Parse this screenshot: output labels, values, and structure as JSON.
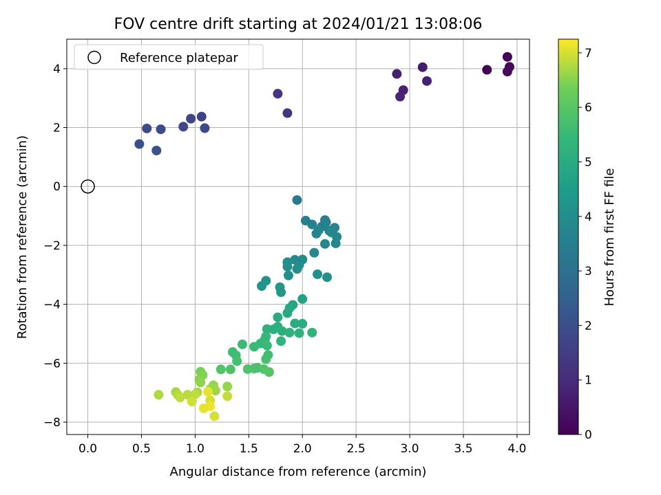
{
  "chart_data": {
    "type": "scatter",
    "title": "FOV centre drift starting at 2024/01/21 13:08:06",
    "xlabel": "Angular distance from reference (arcmin)",
    "ylabel": "Rotation from reference (arcmin)",
    "xlim": [
      -0.196,
      4.116
    ],
    "ylim": [
      -8.42,
      5.0
    ],
    "xticks": [
      "0.0",
      "0.5",
      "1.0",
      "1.5",
      "2.0",
      "2.5",
      "3.0",
      "3.5",
      "4.0"
    ],
    "xtick_values": [
      0,
      0.5,
      1.0,
      1.5,
      2.0,
      2.5,
      3.0,
      3.5,
      4.0
    ],
    "yticks": [
      "4",
      "2",
      "0",
      "−2",
      "−4",
      "−6",
      "−8"
    ],
    "ytick_values": [
      4,
      2,
      0,
      -2,
      -4,
      -6,
      -8
    ],
    "grid": true,
    "legend": {
      "position": "top-left",
      "entries": [
        "Reference platepar"
      ]
    },
    "reference_point": {
      "x": 0,
      "y": 0
    },
    "colorbar": {
      "label": "Hours from first FF file",
      "colormap": "viridis",
      "range": [
        0,
        7.25
      ],
      "ticks": [
        "0",
        "1",
        "2",
        "3",
        "4",
        "5",
        "6",
        "7"
      ],
      "tick_values": [
        0,
        1,
        2,
        3,
        4,
        5,
        6,
        7
      ]
    },
    "points": [
      {
        "x": 3.72,
        "y": 3.96,
        "c": 0.05
      },
      {
        "x": 3.91,
        "y": 4.4,
        "c": 0.1
      },
      {
        "x": 3.93,
        "y": 4.06,
        "c": 0.15
      },
      {
        "x": 3.91,
        "y": 3.9,
        "c": 0.2
      },
      {
        "x": 3.12,
        "y": 4.05,
        "c": 0.6
      },
      {
        "x": 2.88,
        "y": 3.82,
        "c": 0.7
      },
      {
        "x": 3.16,
        "y": 3.58,
        "c": 0.75
      },
      {
        "x": 2.94,
        "y": 3.27,
        "c": 0.8
      },
      {
        "x": 2.91,
        "y": 3.05,
        "c": 0.85
      },
      {
        "x": 1.77,
        "y": 3.15,
        "c": 1.3
      },
      {
        "x": 1.86,
        "y": 2.49,
        "c": 1.35
      },
      {
        "x": 1.06,
        "y": 2.37,
        "c": 1.6
      },
      {
        "x": 0.96,
        "y": 2.3,
        "c": 1.7
      },
      {
        "x": 0.89,
        "y": 2.03,
        "c": 1.75
      },
      {
        "x": 1.09,
        "y": 1.98,
        "c": 1.8
      },
      {
        "x": 0.68,
        "y": 1.94,
        "c": 1.85
      },
      {
        "x": 0.55,
        "y": 1.97,
        "c": 1.9
      },
      {
        "x": 0.48,
        "y": 1.44,
        "c": 2.0
      },
      {
        "x": 0.64,
        "y": 1.22,
        "c": 2.05
      },
      {
        "x": 1.95,
        "y": -0.46,
        "c": 3.3
      },
      {
        "x": 2.21,
        "y": -1.14,
        "c": 3.5
      },
      {
        "x": 2.03,
        "y": -1.16,
        "c": 3.55
      },
      {
        "x": 2.22,
        "y": -1.21,
        "c": 3.55
      },
      {
        "x": 2.09,
        "y": -1.29,
        "c": 3.6
      },
      {
        "x": 2.18,
        "y": -1.36,
        "c": 3.6
      },
      {
        "x": 2.3,
        "y": -1.4,
        "c": 3.65
      },
      {
        "x": 2.25,
        "y": -1.5,
        "c": 3.65
      },
      {
        "x": 2.15,
        "y": -1.49,
        "c": 3.7
      },
      {
        "x": 2.13,
        "y": -1.6,
        "c": 3.7
      },
      {
        "x": 2.32,
        "y": -1.71,
        "c": 3.75
      },
      {
        "x": 2.27,
        "y": -1.56,
        "c": 3.75
      },
      {
        "x": 2.31,
        "y": -1.93,
        "c": 3.8
      },
      {
        "x": 2.21,
        "y": -1.95,
        "c": 3.8
      },
      {
        "x": 2.11,
        "y": -2.25,
        "c": 3.85
      },
      {
        "x": 2.0,
        "y": -2.48,
        "c": 3.9
      },
      {
        "x": 1.93,
        "y": -2.49,
        "c": 3.9
      },
      {
        "x": 1.86,
        "y": -2.57,
        "c": 3.95
      },
      {
        "x": 1.97,
        "y": -2.66,
        "c": 3.95
      },
      {
        "x": 1.86,
        "y": -2.72,
        "c": 4.0
      },
      {
        "x": 1.95,
        "y": -2.8,
        "c": 4.0
      },
      {
        "x": 2.14,
        "y": -2.98,
        "c": 4.05
      },
      {
        "x": 1.87,
        "y": -3.02,
        "c": 4.05
      },
      {
        "x": 2.23,
        "y": -3.08,
        "c": 4.1
      },
      {
        "x": 1.66,
        "y": -3.2,
        "c": 4.2
      },
      {
        "x": 1.62,
        "y": -3.38,
        "c": 4.25
      },
      {
        "x": 1.79,
        "y": -3.42,
        "c": 4.3
      },
      {
        "x": 1.8,
        "y": -3.59,
        "c": 4.35
      },
      {
        "x": 2.0,
        "y": -3.82,
        "c": 4.7
      },
      {
        "x": 1.91,
        "y": -4.02,
        "c": 4.8
      },
      {
        "x": 1.88,
        "y": -4.13,
        "c": 4.85
      },
      {
        "x": 1.86,
        "y": -4.3,
        "c": 4.9
      },
      {
        "x": 1.77,
        "y": -4.44,
        "c": 5.0
      },
      {
        "x": 1.93,
        "y": -4.65,
        "c": 5.05
      },
      {
        "x": 2.0,
        "y": -4.66,
        "c": 5.05
      },
      {
        "x": 1.77,
        "y": -4.76,
        "c": 5.1
      },
      {
        "x": 1.73,
        "y": -4.85,
        "c": 5.1
      },
      {
        "x": 1.67,
        "y": -4.84,
        "c": 5.15
      },
      {
        "x": 1.81,
        "y": -4.91,
        "c": 5.15
      },
      {
        "x": 1.88,
        "y": -4.96,
        "c": 5.2
      },
      {
        "x": 1.97,
        "y": -4.98,
        "c": 5.2
      },
      {
        "x": 2.09,
        "y": -4.96,
        "c": 5.25
      },
      {
        "x": 1.8,
        "y": -5.25,
        "c": 5.3
      },
      {
        "x": 1.66,
        "y": -5.09,
        "c": 5.4
      },
      {
        "x": 1.65,
        "y": -5.19,
        "c": 5.4
      },
      {
        "x": 1.61,
        "y": -5.33,
        "c": 5.45
      },
      {
        "x": 1.67,
        "y": -5.4,
        "c": 5.5
      },
      {
        "x": 1.55,
        "y": -5.44,
        "c": 5.5
      },
      {
        "x": 1.44,
        "y": -5.36,
        "c": 5.55
      },
      {
        "x": 1.35,
        "y": -5.62,
        "c": 5.6
      },
      {
        "x": 1.38,
        "y": -5.73,
        "c": 5.6
      },
      {
        "x": 1.68,
        "y": -5.72,
        "c": 5.65
      },
      {
        "x": 1.66,
        "y": -5.86,
        "c": 5.7
      },
      {
        "x": 1.39,
        "y": -5.93,
        "c": 5.7
      },
      {
        "x": 1.55,
        "y": -6.18,
        "c": 5.8
      },
      {
        "x": 1.58,
        "y": -6.16,
        "c": 5.8
      },
      {
        "x": 1.49,
        "y": -6.2,
        "c": 5.85
      },
      {
        "x": 1.33,
        "y": -6.21,
        "c": 5.85
      },
      {
        "x": 1.24,
        "y": -6.21,
        "c": 5.9
      },
      {
        "x": 1.64,
        "y": -6.2,
        "c": 5.9
      },
      {
        "x": 1.69,
        "y": -6.3,
        "c": 5.95
      },
      {
        "x": 1.05,
        "y": -6.29,
        "c": 6.4
      },
      {
        "x": 1.07,
        "y": -6.4,
        "c": 6.45
      },
      {
        "x": 1.04,
        "y": -6.55,
        "c": 6.5
      },
      {
        "x": 1.05,
        "y": -6.65,
        "c": 6.55
      },
      {
        "x": 1.17,
        "y": -6.75,
        "c": 6.6
      },
      {
        "x": 1.3,
        "y": -6.79,
        "c": 6.6
      },
      {
        "x": 1.14,
        "y": -6.88,
        "c": 6.65
      },
      {
        "x": 1.19,
        "y": -6.93,
        "c": 6.65
      },
      {
        "x": 1.02,
        "y": -6.99,
        "c": 6.7
      },
      {
        "x": 0.82,
        "y": -6.98,
        "c": 6.7
      },
      {
        "x": 0.66,
        "y": -7.07,
        "c": 6.75
      },
      {
        "x": 0.84,
        "y": -7.08,
        "c": 6.8
      },
      {
        "x": 0.93,
        "y": -7.07,
        "c": 6.8
      },
      {
        "x": 1.0,
        "y": -7.06,
        "c": 6.85
      },
      {
        "x": 0.86,
        "y": -7.16,
        "c": 6.85
      },
      {
        "x": 1.3,
        "y": -7.12,
        "c": 6.9
      },
      {
        "x": 0.97,
        "y": -7.3,
        "c": 6.95
      },
      {
        "x": 1.14,
        "y": -7.26,
        "c": 7.0
      },
      {
        "x": 1.12,
        "y": -6.97,
        "c": 7.1
      },
      {
        "x": 1.14,
        "y": -7.46,
        "c": 7.15
      },
      {
        "x": 1.08,
        "y": -7.53,
        "c": 7.1
      },
      {
        "x": 1.18,
        "y": -7.8,
        "c": 7.0
      }
    ]
  }
}
